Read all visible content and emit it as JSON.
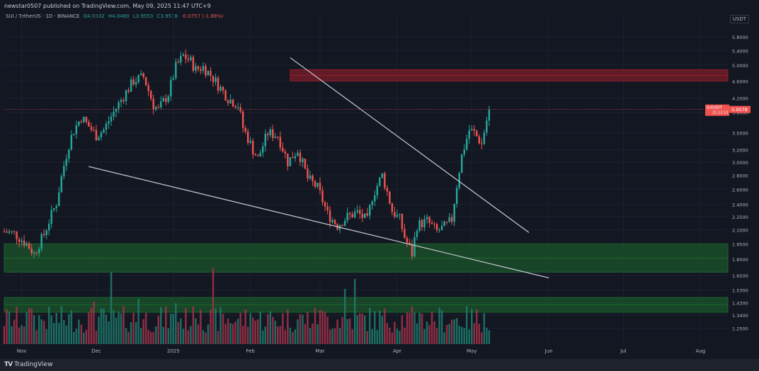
{
  "header": {
    "published_text": "newstar0507 published on TradingView.com, May 09, 2025 11:47 UTC+9"
  },
  "legend": {
    "symbol": "SUI / TetherUS · 1D · BINANCE",
    "open": "O4.0332",
    "high": "H4.0480",
    "low": "L3.9553",
    "close": "C3.9578",
    "change": "-0.0757 (-1.88%)"
  },
  "price_axis": {
    "currency": "USDT",
    "last_price_label": "SUIUSDT",
    "last_price": "3.9578",
    "countdown": "21:12:13"
  },
  "footer": {
    "brand": "TradingView"
  },
  "colors": {
    "up": "#26a69a",
    "down": "#ef5350",
    "up_vol": "#1e7d6e",
    "down_vol": "#a6334a",
    "resistance_zone": "#a01f2a",
    "support_zone": "#1e6b2c",
    "trendline": "#c8ccd6"
  },
  "chart_data": {
    "type": "candlestick",
    "title": "SUI / TetherUS · 1D · BINANCE",
    "y_scale": "log",
    "ylim": [
      1.15,
      6.3
    ],
    "y_ticks": [
      "5.8000",
      "5.4000",
      "5.0000",
      "4.6000",
      "4.2000",
      "3.9000",
      "3.5000",
      "3.2000",
      "3.0000",
      "2.8000",
      "2.6000",
      "2.4000",
      "2.2500",
      "2.1000",
      "1.9500",
      "1.8000",
      "1.6500",
      "1.5300",
      "1.4300",
      "1.3400",
      "1.2500"
    ],
    "x_labels": [
      "Nov",
      "Dec",
      "2025",
      "Feb",
      "Mar",
      "Apr",
      "May",
      "Jun",
      "Jul",
      "Aug"
    ],
    "x_label_days": [
      31,
      61,
      92,
      123,
      151,
      182,
      212,
      243,
      273,
      304
    ],
    "x_range_days": [
      24,
      315
    ],
    "series_close_anchors": {
      "day": [
        24,
        28,
        33,
        36,
        40,
        45,
        50,
        52,
        55,
        58,
        61,
        64,
        68,
        72,
        76,
        80,
        84,
        86,
        90,
        93,
        96,
        99,
        101,
        104,
        107,
        110,
        114,
        118,
        120,
        124,
        126,
        130,
        134,
        138,
        142,
        146,
        150,
        154,
        158,
        162,
        166,
        170,
        172,
        176,
        180,
        183,
        185,
        188,
        190,
        194,
        198,
        202,
        204,
        208,
        211,
        213,
        216,
        219
      ],
      "close": [
        2.08,
        2.06,
        1.95,
        1.85,
        2.05,
        2.42,
        3.3,
        3.55,
        3.8,
        3.62,
        3.45,
        3.55,
        3.9,
        4.25,
        4.6,
        4.7,
        4.05,
        3.95,
        4.3,
        4.95,
        5.25,
        5.1,
        4.88,
        4.95,
        4.75,
        4.5,
        4.2,
        4.05,
        3.6,
        3.2,
        3.05,
        3.5,
        3.45,
        3.0,
        3.2,
        2.75,
        2.62,
        2.28,
        2.15,
        2.25,
        2.3,
        2.2,
        2.5,
        2.8,
        2.32,
        2.22,
        2.02,
        1.85,
        2.15,
        2.2,
        2.08,
        2.15,
        2.22,
        3.1,
        3.55,
        3.5,
        3.3,
        3.9578
      ]
    },
    "volume_relative": "separate pane at bottom, colored by candle direction",
    "annotations": [
      {
        "kind": "trendline",
        "from": {
          "day": 139,
          "price": 5.2
        },
        "to": {
          "day": 235,
          "price": 2.07
        }
      },
      {
        "kind": "trendline",
        "from": {
          "day": 58,
          "price": 2.93
        },
        "to": {
          "day": 243,
          "price": 1.63
        }
      },
      {
        "kind": "zone",
        "color": "red",
        "price_low": 4.6,
        "price_high": 4.88,
        "day_from": 139,
        "day_to": 315
      },
      {
        "kind": "zone",
        "color": "green",
        "price_low": 1.68,
        "price_high": 1.95,
        "day_from": 24,
        "day_to": 315
      },
      {
        "kind": "zone",
        "color": "green",
        "price_low": 1.36,
        "price_high": 1.47,
        "day_from": 24,
        "day_to": 315
      }
    ],
    "last_price": 3.9578,
    "legend_position": "top-left"
  }
}
